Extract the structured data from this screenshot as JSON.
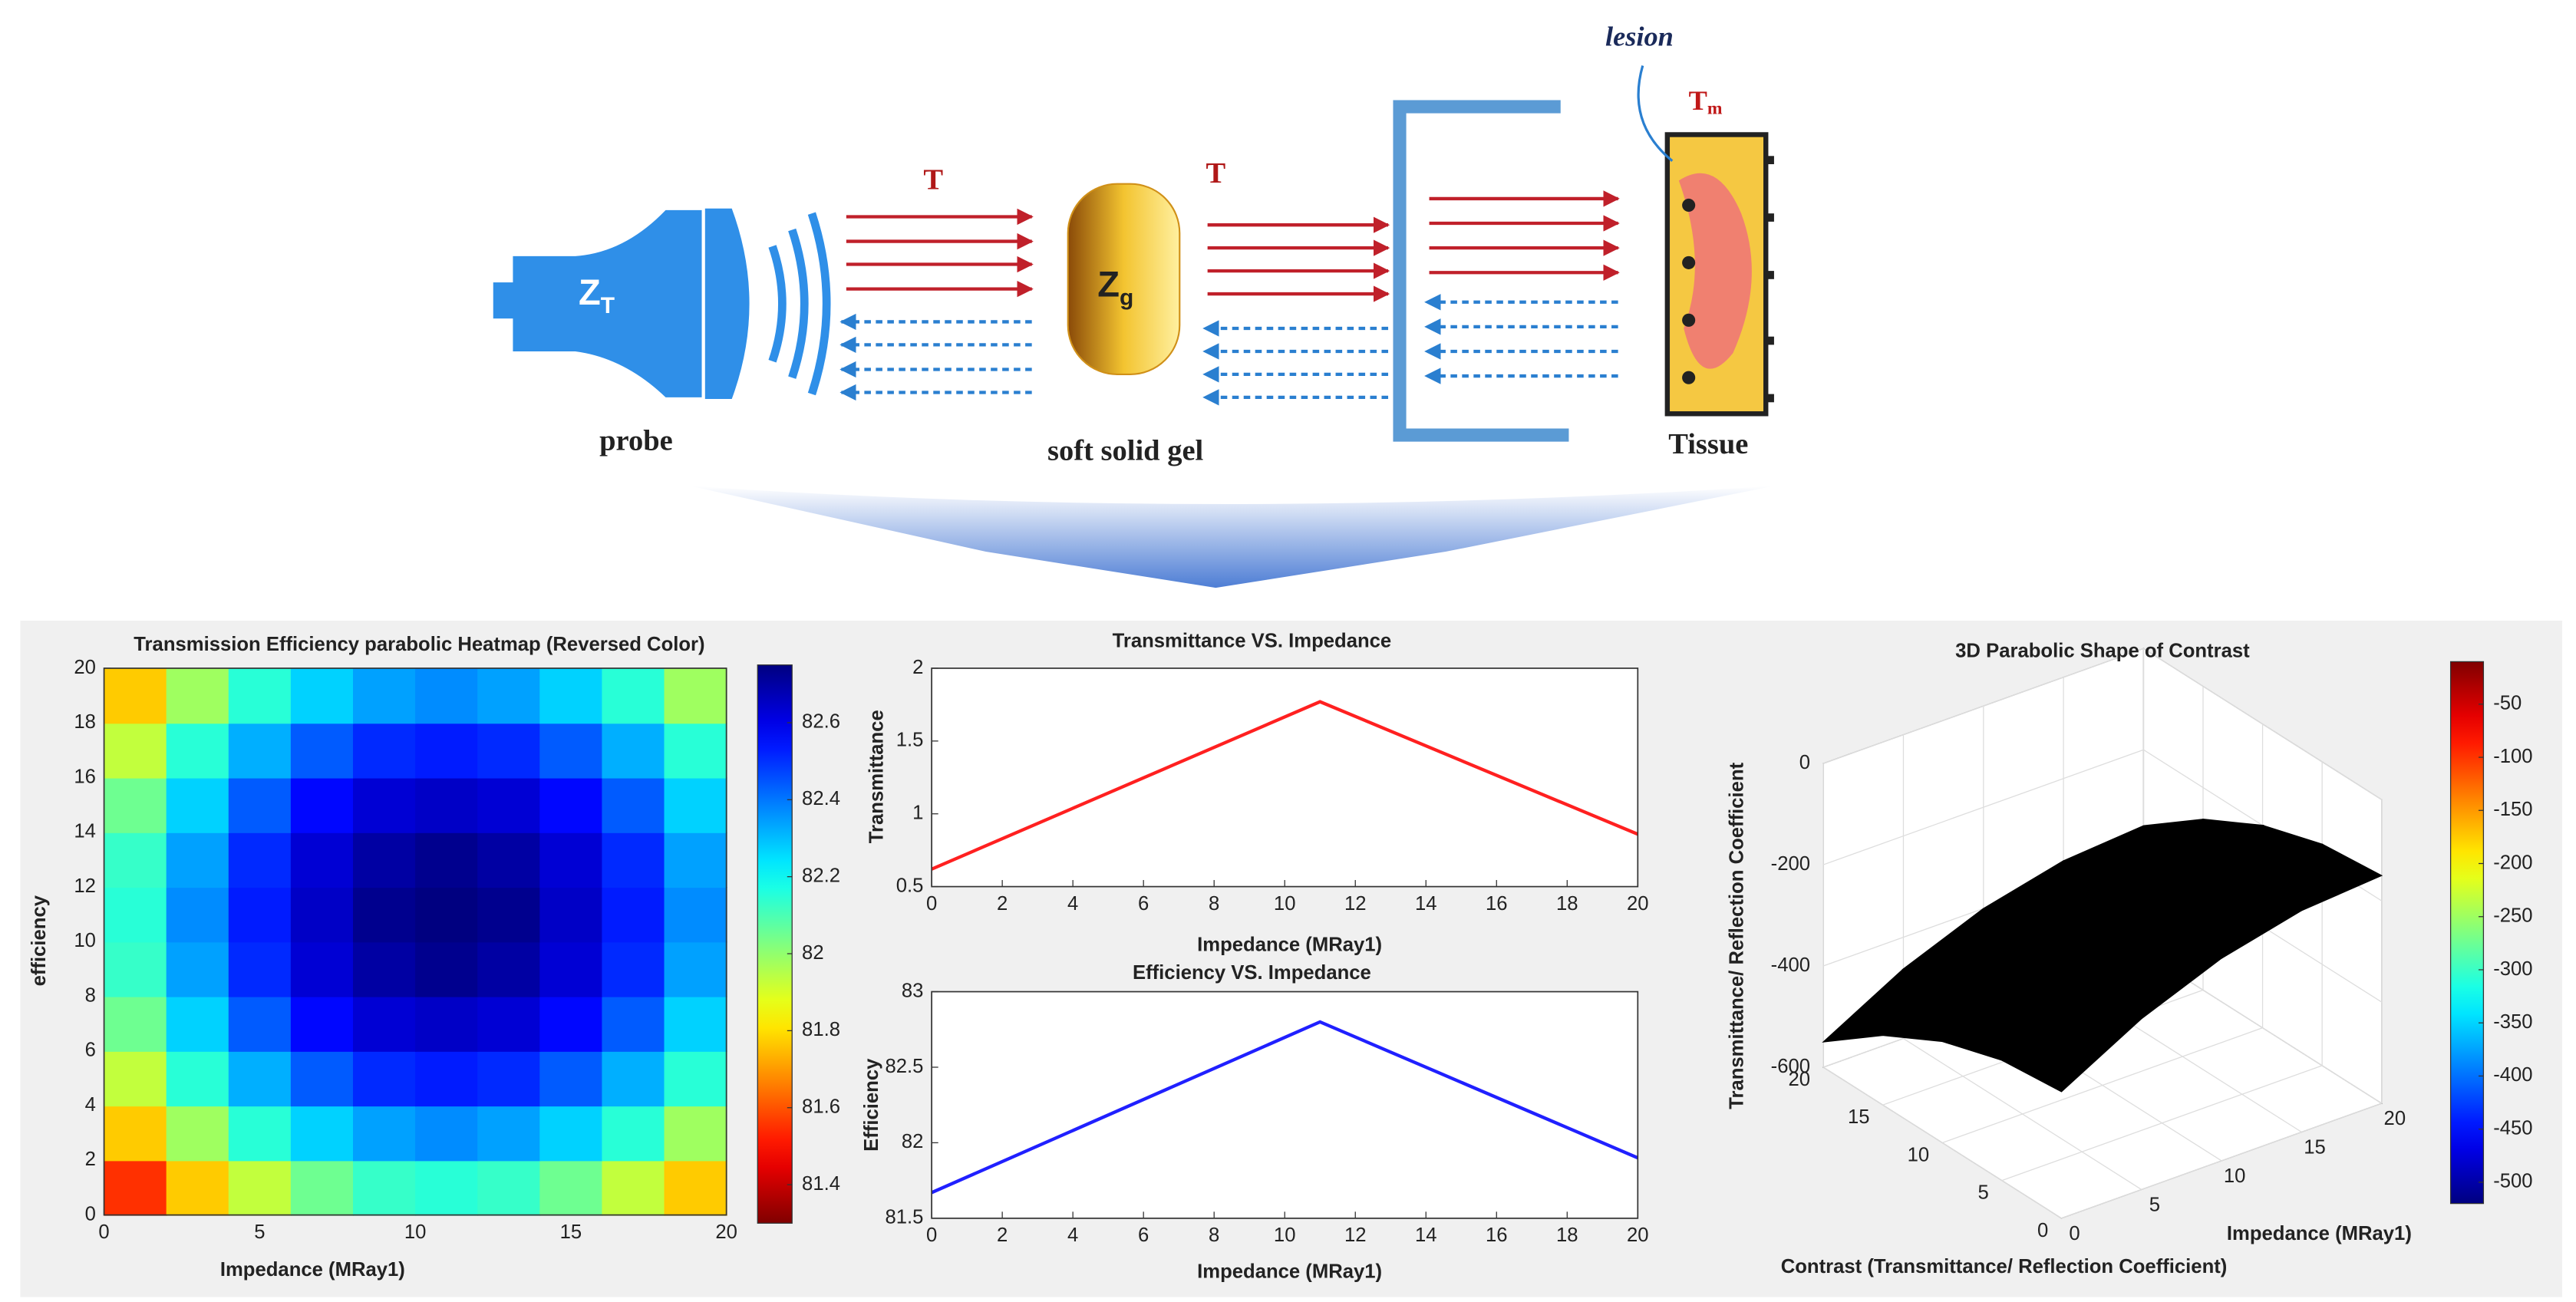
{
  "diagram": {
    "probe_label": "probe",
    "probe_impedance": "Z",
    "probe_impedance_sub": "T",
    "gel_label": "soft solid gel",
    "gel_impedance": "Z",
    "gel_impedance_sub": "g",
    "tissue_label": "Tissue",
    "lesion_label": "lesion",
    "transmit_labels": [
      "T",
      "T"
    ],
    "tissue_transmit": "T",
    "tissue_transmit_sub": "m"
  },
  "chart_data": [
    {
      "type": "heatmap",
      "title": "Transmission Efficiency parabolic Heatmap (Reversed Color)",
      "xlabel": "Impedance (MRay1)",
      "ylabel": "efficiency",
      "x": [
        1,
        3,
        5,
        7,
        9,
        11,
        13,
        15,
        17,
        19
      ],
      "y": [
        1,
        3,
        5,
        7,
        9,
        11,
        13,
        15,
        17,
        19
      ],
      "z": [
        [
          81.55,
          81.77,
          81.93,
          82.05,
          82.13,
          82.15,
          82.13,
          82.05,
          81.93,
          81.77
        ],
        [
          81.77,
          81.98,
          82.15,
          82.27,
          82.34,
          82.37,
          82.34,
          82.27,
          82.15,
          81.98
        ],
        [
          81.93,
          82.15,
          82.32,
          82.44,
          82.51,
          82.53,
          82.51,
          82.44,
          82.32,
          82.15
        ],
        [
          82.05,
          82.27,
          82.44,
          82.56,
          82.63,
          82.65,
          82.63,
          82.56,
          82.44,
          82.27
        ],
        [
          82.13,
          82.34,
          82.51,
          82.63,
          82.7,
          82.73,
          82.7,
          82.63,
          82.51,
          82.34
        ],
        [
          82.15,
          82.37,
          82.53,
          82.65,
          82.73,
          82.75,
          82.73,
          82.65,
          82.53,
          82.37
        ],
        [
          82.13,
          82.34,
          82.51,
          82.63,
          82.7,
          82.73,
          82.7,
          82.63,
          82.51,
          82.34
        ],
        [
          82.05,
          82.27,
          82.44,
          82.56,
          82.63,
          82.65,
          82.63,
          82.56,
          82.44,
          82.27
        ],
        [
          81.93,
          82.15,
          82.32,
          82.44,
          82.51,
          82.53,
          82.51,
          82.44,
          82.32,
          82.15
        ],
        [
          81.77,
          81.98,
          82.15,
          82.27,
          82.34,
          82.37,
          82.34,
          82.27,
          82.15,
          81.98
        ]
      ],
      "xlim": [
        0,
        20
      ],
      "ylim": [
        0,
        20
      ],
      "xticks": [
        0,
        5,
        10,
        15,
        20
      ],
      "yticks": [
        0,
        2,
        4,
        6,
        8,
        10,
        12,
        14,
        16,
        18,
        20
      ],
      "zlim": [
        81.3,
        82.75
      ],
      "zticks": [
        81.4,
        81.6,
        81.8,
        82,
        82.2,
        82.4,
        82.6
      ],
      "colormap": "jet",
      "reversed": true
    },
    {
      "type": "line",
      "title": "Transmittance VS. Impedance",
      "xlabel": "Impedance (MRay1)",
      "ylabel": "Transmittance",
      "x": [
        0,
        11,
        20
      ],
      "values": [
        0.62,
        1.77,
        0.86
      ],
      "color": "#ff2020",
      "xlim": [
        0,
        20
      ],
      "ylim": [
        0.5,
        2
      ],
      "xticks": [
        0,
        2,
        4,
        6,
        8,
        10,
        12,
        14,
        16,
        18,
        20
      ],
      "yticks": [
        0.5,
        1,
        1.5,
        2
      ]
    },
    {
      "type": "line",
      "title": "Efficiency VS. Impedance",
      "xlabel": "Impedance (MRay1)",
      "ylabel": "Efficiency",
      "x": [
        0,
        11,
        20
      ],
      "values": [
        81.67,
        82.8,
        81.9
      ],
      "color": "#2020ff",
      "xlim": [
        0,
        20
      ],
      "ylim": [
        81.5,
        83
      ],
      "xticks": [
        0,
        2,
        4,
        6,
        8,
        10,
        12,
        14,
        16,
        18,
        20
      ],
      "yticks": [
        81.5,
        82,
        82.5,
        83
      ]
    },
    {
      "type": "surface3d",
      "title": "3D Parabolic Shape of Contrast",
      "xlabel": "Impedance (MRay1)",
      "ylabel": "Contrast (Transmittance/ Reflection Coefficient)",
      "zlabel": "Transmittance/ Reflection Coefficient",
      "x": [
        0,
        5,
        10,
        15,
        20
      ],
      "y": [
        0,
        5,
        10,
        15,
        20
      ],
      "z": [
        [
          -350,
          -262.5,
          -200,
          -162.5,
          -150
        ],
        [
          -362.5,
          -275,
          -212.5,
          -175,
          -162.5
        ],
        [
          -400,
          -312.5,
          -250,
          -212.5,
          -200
        ],
        [
          -462.5,
          -375,
          -312.5,
          -275,
          -262.5
        ],
        [
          -550,
          -462.5,
          -400,
          -362.5,
          -350
        ]
      ],
      "color": "#000000",
      "xlim": [
        0,
        20
      ],
      "ylim": [
        0,
        20
      ],
      "zlim": [
        -600,
        0
      ],
      "xticks": [
        0,
        5,
        10,
        15,
        20
      ],
      "yticks": [
        0,
        5,
        10,
        15,
        20
      ],
      "zticks": [
        0,
        -200,
        -400,
        -600
      ],
      "clim": [
        -520,
        -10
      ],
      "cticks": [
        -50,
        -100,
        -150,
        -200,
        -250,
        -300,
        -350,
        -400,
        -450,
        -500
      ],
      "colormap": "jet",
      "grid": true
    }
  ]
}
